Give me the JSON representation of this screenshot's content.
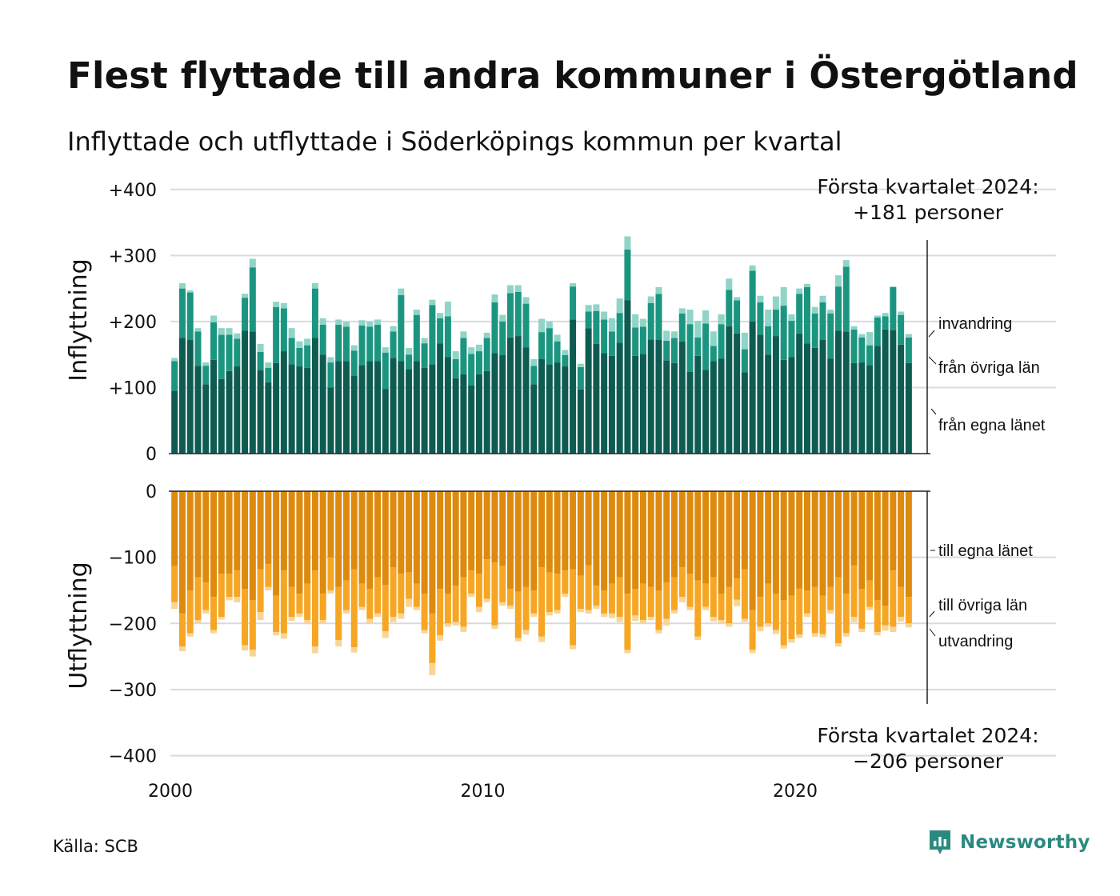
{
  "title": "Flest flyttade till andra kommuner i Östergötland",
  "subtitle": "Inflyttade och utflyttade i Söderköpings kommun per kvartal",
  "source": "Källa: SCB",
  "brand": "Newsworthy",
  "annotations": {
    "top_line1": "Första kvartalet 2024:",
    "top_line2": "+181 personer",
    "bottom_line1": "Första kvartalet 2024:",
    "bottom_line2": "−206 personer"
  },
  "colors": {
    "in_egna": "#0e5c51",
    "in_ovriga": "#1b9580",
    "in_invandring": "#8fd4c7",
    "ut_egna": "#dd8a0e",
    "ut_ovriga": "#f6a623",
    "ut_utvandring": "#f8d596",
    "grid": "#d9d9e0",
    "brand": "#2a8a7f"
  },
  "chart_data": {
    "type": "bar",
    "stacked": true,
    "x_start": "2000 Q1",
    "x_end": "2024 Q1",
    "x_ticks": [
      "2000",
      "2010",
      "2020"
    ],
    "panels": [
      {
        "name": "Inflyttning",
        "ylim": [
          0,
          400
        ],
        "y_ticks": [
          "0",
          "+100",
          "+200",
          "+300",
          "+400"
        ],
        "y_values": [
          0,
          100,
          200,
          300,
          400
        ],
        "series": [
          {
            "name": "från egna länet",
            "values": [
              95,
              175,
              172,
              133,
              105,
              142,
              113,
              125,
              132,
              186,
              185,
              126,
              108,
              137,
              155,
              135,
              132,
              130,
              175,
              150,
              100,
              140,
              140,
              118,
              134,
              140,
              140,
              98,
              145,
              140,
              128,
              140,
              130,
              135,
              167,
              146,
              114,
              120,
              103,
              120,
              125,
              152,
              149,
              176,
              178,
              161,
              105,
              143,
              135,
              138,
              132,
              203,
              97,
              190,
              166,
              152,
              148,
              168,
              232,
              148,
              151,
              173,
              172,
              141,
              137,
              170,
              124,
              148,
              127,
              140,
              144,
              193,
              182,
              123,
              200,
              180,
              150,
              178,
              142,
              146,
              182,
              167,
              160,
              172,
              144,
              186,
              185,
              137,
              138,
              134,
              163,
              188,
              187,
              165,
              137
            ]
          },
          {
            "name": "från övriga län",
            "values": [
              45,
              75,
              72,
              52,
              28,
              57,
              67,
              55,
              42,
              50,
              97,
              28,
              22,
              85,
              65,
              40,
              28,
              34,
              75,
              45,
              38,
              55,
              52,
              38,
              60,
              52,
              55,
              55,
              40,
              100,
              22,
              70,
              37,
              90,
              38,
              62,
              29,
              55,
              48,
              35,
              50,
              77,
              51,
              67,
              67,
              66,
              28,
              41,
              55,
              32,
              17,
              50,
              34,
              25,
              50,
              51,
              37,
              45,
              77,
              43,
              41,
              55,
              70,
              30,
              38,
              42,
              72,
              28,
              70,
              23,
              52,
              55,
              50,
              35,
              77,
              49,
              43,
              40,
              82,
              55,
              60,
              85,
              52,
              57,
              68,
              67,
              98,
              51,
              38,
              30,
              43,
              20,
              65,
              45,
              39
            ]
          },
          {
            "name": "invandring",
            "values": [
              5,
              8,
              3,
              5,
              5,
              10,
              10,
              10,
              8,
              6,
              13,
              12,
              8,
              8,
              8,
              15,
              10,
              10,
              8,
              10,
              8,
              8,
              8,
              8,
              8,
              8,
              8,
              8,
              8,
              10,
              10,
              8,
              8,
              8,
              8,
              22,
              12,
              10,
              10,
              10,
              8,
              12,
              10,
              12,
              10,
              10,
              10,
              20,
              10,
              10,
              8,
              5,
              5,
              10,
              10,
              12,
              20,
              22,
              20,
              20,
              12,
              10,
              10,
              15,
              10,
              8,
              22,
              25,
              20,
              22,
              15,
              17,
              5,
              25,
              8,
              10,
              25,
              20,
              28,
              10,
              8,
              5,
              10,
              10,
              6,
              17,
              10,
              5,
              5,
              20,
              3,
              5,
              1,
              5,
              5
            ]
          }
        ]
      },
      {
        "name": "Utflyttning",
        "ylim": [
          -400,
          0
        ],
        "y_ticks": [
          "0",
          "−100",
          "−200",
          "−300",
          "−400"
        ],
        "y_values": [
          0,
          -100,
          -200,
          -300,
          -400
        ],
        "series": [
          {
            "name": "till egna länet",
            "values": [
              -113,
              -185,
              -150,
              -130,
              -138,
              -160,
              -125,
              -125,
              -120,
              -148,
              -165,
              -118,
              -110,
              -158,
              -120,
              -145,
              -155,
              -140,
              -120,
              -155,
              -100,
              -145,
              -135,
              -118,
              -140,
              -148,
              -130,
              -142,
              -115,
              -125,
              -123,
              -140,
              -155,
              -185,
              -148,
              -155,
              -143,
              -130,
              -120,
              -125,
              -103,
              -108,
              -113,
              -148,
              -152,
              -145,
              -150,
              -115,
              -123,
              -125,
              -120,
              -118,
              -128,
              -112,
              -143,
              -150,
              -140,
              -130,
              -155,
              -148,
              -140,
              -145,
              -150,
              -138,
              -130,
              -115,
              -125,
              -135,
              -140,
              -130,
              -155,
              -145,
              -132,
              -118,
              -180,
              -160,
              -140,
              -155,
              -165,
              -158,
              -147,
              -150,
              -145,
              -158,
              -145,
              -130,
              -155,
              -112,
              -148,
              -135,
              -165,
              -173,
              -120,
              -145,
              -160
            ]
          },
          {
            "name": "till övriga län",
            "values": [
              -55,
              -50,
              -65,
              -65,
              -42,
              -50,
              -65,
              -35,
              -40,
              -85,
              -75,
              -65,
              -35,
              -55,
              -95,
              -45,
              -30,
              -55,
              -115,
              -40,
              -50,
              -80,
              -45,
              -118,
              -35,
              -45,
              -55,
              -70,
              -75,
              -60,
              -40,
              -35,
              -55,
              -75,
              -70,
              -45,
              -55,
              -75,
              -35,
              -50,
              -60,
              -95,
              -55,
              -25,
              -70,
              -65,
              -35,
              -105,
              -60,
              -55,
              -35,
              -115,
              -50,
              -68,
              -30,
              -35,
              -45,
              -60,
              -85,
              -40,
              -55,
              -45,
              -60,
              -55,
              -50,
              -45,
              -50,
              -85,
              -35,
              -60,
              -40,
              -55,
              -32,
              -75,
              -60,
              -45,
              -60,
              -55,
              -68,
              -66,
              -70,
              -35,
              -70,
              -58,
              -35,
              -100,
              -60,
              -78,
              -60,
              -40,
              -48,
              -30,
              -85,
              -45,
              -40
            ]
          },
          {
            "name": "utvandring",
            "values": [
              -10,
              -7,
              -5,
              -5,
              -5,
              -5,
              -4,
              -5,
              -8,
              -8,
              -10,
              -12,
              -5,
              -5,
              -8,
              -6,
              -5,
              -6,
              -10,
              -5,
              -5,
              -10,
              -5,
              -8,
              -5,
              -7,
              -5,
              -10,
              -8,
              -8,
              -12,
              -5,
              -5,
              -18,
              -8,
              -5,
              -5,
              -8,
              -5,
              -8,
              -5,
              -5,
              -5,
              -5,
              -5,
              -7,
              -5,
              -8,
              -5,
              -5,
              -5,
              -6,
              -5,
              -5,
              -5,
              -5,
              -7,
              -8,
              -5,
              -8,
              -5,
              -5,
              -5,
              -10,
              -5,
              -8,
              -5,
              -5,
              -5,
              -7,
              -5,
              -5,
              -10,
              -5,
              -5,
              -7,
              -5,
              -6,
              -5,
              -5,
              -5,
              -5,
              -5,
              -5,
              -5,
              -5,
              -5,
              -8,
              -5,
              -5,
              -5,
              -8,
              -8,
              -7,
              -6
            ]
          }
        ]
      }
    ],
    "labels_in": [
      "invandring",
      "från övriga län",
      "från egna länet"
    ],
    "labels_out": [
      "till egna länet",
      "till övriga län",
      "utvandring"
    ],
    "grid": true,
    "legend": "right-side labels"
  }
}
